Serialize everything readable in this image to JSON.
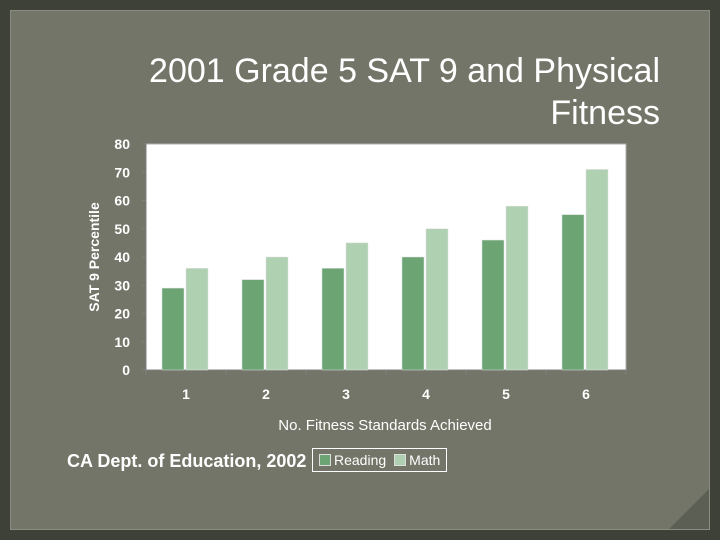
{
  "slide": {
    "title": "2001 Grade 5 SAT 9 and Physical Fitness",
    "footer": "CA Dept. of Education, 2002"
  },
  "colors": {
    "background": "#727567",
    "reading": "#6da474",
    "math": "#afd1b2",
    "text": "#ffffff"
  },
  "chart_data": {
    "type": "bar",
    "categories": [
      "1",
      "2",
      "3",
      "4",
      "5",
      "6"
    ],
    "series": [
      {
        "name": "Reading",
        "values": [
          29,
          32,
          36,
          40,
          46,
          55
        ]
      },
      {
        "name": "Math",
        "values": [
          36,
          40,
          45,
          50,
          58,
          71
        ]
      }
    ],
    "xlabel": "No. Fitness Standards Achieved",
    "ylabel": "SAT 9 Percentile",
    "ylim": [
      0,
      80
    ],
    "yticks": [
      "0",
      "10",
      "20",
      "30",
      "40",
      "50",
      "60",
      "70",
      "80"
    ],
    "grid": false,
    "legend": "bottom"
  }
}
